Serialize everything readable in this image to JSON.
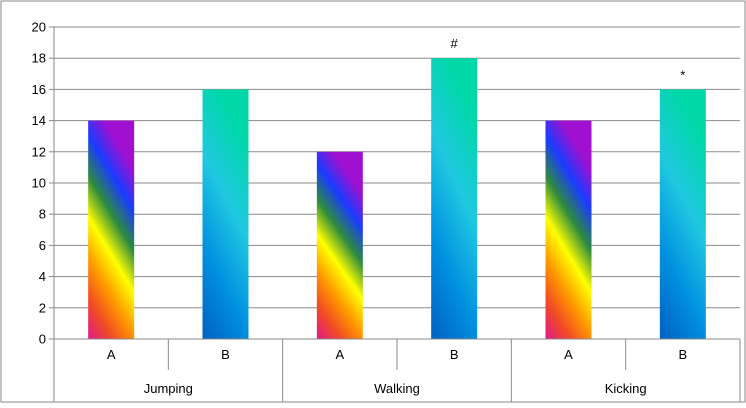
{
  "chart_data": {
    "type": "bar",
    "title": "",
    "xlabel": "",
    "ylabel": "",
    "ylim": [
      0,
      20
    ],
    "yticks": [
      0,
      2,
      4,
      6,
      8,
      10,
      12,
      14,
      16,
      18,
      20
    ],
    "grid": true,
    "legend": "none",
    "groups": [
      "Jumping",
      "Walking",
      "Kicking"
    ],
    "categories": [
      "A",
      "B",
      "A",
      "B",
      "A",
      "B"
    ],
    "values": [
      14,
      16,
      12,
      18,
      14,
      16
    ],
    "annotations": [
      "",
      "",
      "",
      "#",
      "",
      "*"
    ],
    "gradients": {
      "A": [
        "#e0198c",
        "#f04b24",
        "#ff9a00",
        "#ffff00",
        "#2e8b3e",
        "#1a3cff",
        "#a010d0"
      ],
      "B": [
        "#0060c0",
        "#0090e0",
        "#20c8e0",
        "#00d8a8"
      ]
    },
    "colors": {
      "grid": "#8a8a8a",
      "frame": "#8a8a8a"
    }
  }
}
